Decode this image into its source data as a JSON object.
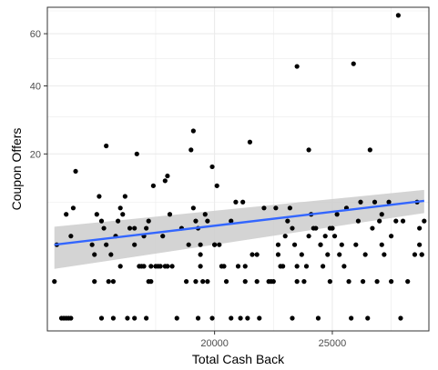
{
  "chart_data": {
    "type": "scatter",
    "title": "",
    "xlabel": "Total Cash Back",
    "ylabel": "Coupon Offers",
    "x_range": [
      12900,
      29100
    ],
    "y_scale": "sqrt",
    "y_range": [
      0,
      70
    ],
    "x_ticks": [
      20000,
      25000
    ],
    "y_ticks": [
      20,
      40,
      60
    ],
    "grid": true,
    "colors": {
      "points": "#000000",
      "trend_line": "#3366FF",
      "confidence_band": "#cccccc",
      "grid": "#ebebeb",
      "panel_border": "#333333"
    },
    "trend_line": {
      "x": [
        13200,
        28900
      ],
      "y": [
        4.0,
        10.2
      ],
      "y_lower": [
        1.8,
        8.2
      ],
      "y_upper": [
        6.2,
        12.2
      ]
    },
    "series": [
      {
        "points": [
          [
            13200,
            1.0
          ],
          [
            13300,
            4.0
          ],
          [
            13500,
            0.0
          ],
          [
            13600,
            0.0
          ],
          [
            13700,
            0.0
          ],
          [
            13800,
            0.0
          ],
          [
            13900,
            5.0
          ],
          [
            13900,
            0.0
          ],
          [
            13700,
            8.0
          ],
          [
            14000,
            9.0
          ],
          [
            14100,
            16.0
          ],
          [
            14800,
            4.0
          ],
          [
            14900,
            3.0
          ],
          [
            14900,
            1.0
          ],
          [
            15000,
            8.0
          ],
          [
            15100,
            11.0
          ],
          [
            15200,
            7.0
          ],
          [
            15200,
            0.0
          ],
          [
            15300,
            6.0
          ],
          [
            15400,
            22.0
          ],
          [
            15400,
            4.0
          ],
          [
            15500,
            1.0
          ],
          [
            15600,
            3.0
          ],
          [
            15700,
            1.0
          ],
          [
            15700,
            0.0
          ],
          [
            15800,
            5.0
          ],
          [
            15900,
            7.0
          ],
          [
            16000,
            9.0
          ],
          [
            16000,
            2.0
          ],
          [
            16100,
            8.0
          ],
          [
            16200,
            11.0
          ],
          [
            16300,
            0.0
          ],
          [
            16400,
            6.0
          ],
          [
            16600,
            4.0
          ],
          [
            16600,
            6.0
          ],
          [
            16600,
            0.0
          ],
          [
            16700,
            20.0
          ],
          [
            16800,
            2.0
          ],
          [
            16900,
            2.0
          ],
          [
            17000,
            2.0
          ],
          [
            17000,
            5.0
          ],
          [
            17100,
            6.0
          ],
          [
            17100,
            0.0
          ],
          [
            17200,
            7.0
          ],
          [
            17200,
            1.0
          ],
          [
            17300,
            1.0
          ],
          [
            17300,
            2.0
          ],
          [
            17400,
            13.0
          ],
          [
            17500,
            2.0
          ],
          [
            17600,
            2.0
          ],
          [
            17700,
            2.0
          ],
          [
            17800,
            5.0
          ],
          [
            17900,
            2.0
          ],
          [
            17900,
            14.0
          ],
          [
            18000,
            15.0
          ],
          [
            18000,
            2.0
          ],
          [
            18100,
            8.0
          ],
          [
            18200,
            2.0
          ],
          [
            18400,
            0.0
          ],
          [
            18600,
            6.0
          ],
          [
            18800,
            1.0
          ],
          [
            18900,
            4.0
          ],
          [
            19000,
            21.0
          ],
          [
            19100,
            26.0
          ],
          [
            19100,
            9.0
          ],
          [
            19200,
            7.0
          ],
          [
            19200,
            1.0
          ],
          [
            19300,
            6.0
          ],
          [
            19300,
            0.0
          ],
          [
            19400,
            4.0
          ],
          [
            19400,
            3.0
          ],
          [
            19400,
            2.0
          ],
          [
            19500,
            1.0
          ],
          [
            19600,
            8.0
          ],
          [
            19700,
            7.0
          ],
          [
            19700,
            1.0
          ],
          [
            19900,
            17.0
          ],
          [
            19900,
            0.0
          ],
          [
            20000,
            4.0
          ],
          [
            20000,
            4.0
          ],
          [
            20100,
            13.0
          ],
          [
            20200,
            4.0
          ],
          [
            20300,
            2.0
          ],
          [
            20400,
            2.0
          ],
          [
            20500,
            1.0
          ],
          [
            20700,
            0.0
          ],
          [
            20700,
            7.0
          ],
          [
            20900,
            10.0
          ],
          [
            21000,
            2.0
          ],
          [
            21100,
            0.0
          ],
          [
            21200,
            10.0
          ],
          [
            21300,
            1.0
          ],
          [
            21300,
            2.0
          ],
          [
            21400,
            0.0
          ],
          [
            21500,
            23.0
          ],
          [
            21600,
            3.0
          ],
          [
            21800,
            1.0
          ],
          [
            21800,
            3.0
          ],
          [
            21900,
            0.0
          ],
          [
            22100,
            9.0
          ],
          [
            22300,
            1.0
          ],
          [
            22400,
            1.0
          ],
          [
            22500,
            1.0
          ],
          [
            22600,
            9.0
          ],
          [
            22700,
            3.0
          ],
          [
            22700,
            4.0
          ],
          [
            22800,
            2.0
          ],
          [
            22900,
            2.0
          ],
          [
            23000,
            5.0
          ],
          [
            23100,
            7.0
          ],
          [
            23200,
            9.0
          ],
          [
            23300,
            6.0
          ],
          [
            23300,
            0.0
          ],
          [
            23400,
            4.0
          ],
          [
            23500,
            47.0
          ],
          [
            23500,
            1.0
          ],
          [
            23500,
            2.0
          ],
          [
            23700,
            3.0
          ],
          [
            23800,
            1.0
          ],
          [
            23900,
            2.0
          ],
          [
            24000,
            21.0
          ],
          [
            24000,
            5.0
          ],
          [
            24100,
            8.0
          ],
          [
            24200,
            6.0
          ],
          [
            24300,
            6.0
          ],
          [
            24400,
            0.0
          ],
          [
            24500,
            4.0
          ],
          [
            24500,
            4.0
          ],
          [
            24600,
            2.0
          ],
          [
            24700,
            5.0
          ],
          [
            24800,
            3.0
          ],
          [
            24900,
            6.0
          ],
          [
            24900,
            1.0
          ],
          [
            25000,
            6.0
          ],
          [
            25000,
            6.0
          ],
          [
            25100,
            5.0
          ],
          [
            25200,
            8.0
          ],
          [
            25300,
            3.0
          ],
          [
            25400,
            4.0
          ],
          [
            25500,
            2.0
          ],
          [
            25600,
            9.0
          ],
          [
            25700,
            1.0
          ],
          [
            25800,
            0.0
          ],
          [
            25900,
            48.0
          ],
          [
            26000,
            4.0
          ],
          [
            26100,
            7.0
          ],
          [
            26200,
            10.0
          ],
          [
            26300,
            1.0
          ],
          [
            26400,
            3.0
          ],
          [
            26500,
            0.0
          ],
          [
            26600,
            21.0
          ],
          [
            26700,
            6.0
          ],
          [
            26800,
            10.0
          ],
          [
            26900,
            1.0
          ],
          [
            27000,
            7.0
          ],
          [
            27100,
            4.0
          ],
          [
            27100,
            8.0
          ],
          [
            27200,
            3.0
          ],
          [
            27400,
            10.0
          ],
          [
            27500,
            5.0
          ],
          [
            27500,
            1.0
          ],
          [
            27700,
            7.0
          ],
          [
            27800,
            68.0
          ],
          [
            27900,
            0.0
          ],
          [
            28000,
            7.0
          ],
          [
            28200,
            1.0
          ],
          [
            28500,
            3.0
          ],
          [
            28600,
            10.0
          ],
          [
            28700,
            6.0
          ],
          [
            28700,
            4.0
          ],
          [
            28800,
            3.0
          ],
          [
            28800,
            3.0
          ],
          [
            28900,
            7.0
          ]
        ]
      }
    ]
  }
}
